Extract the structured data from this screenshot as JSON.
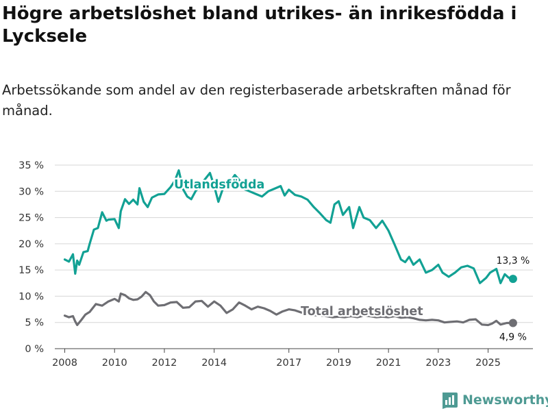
{
  "title": "Högre arbetslöshet bland utrikes- än inrikesfödda i Lycksele",
  "subtitle": "Arbetssökande som andel av den registerbaserade arbetskraften månad för månad.",
  "brand": {
    "name": "Newsworthy",
    "logo_icon": "bar-chart-icon"
  },
  "colors": {
    "utlandsfodda": "#12a194",
    "total": "#6e6e73",
    "grid": "#d6d6d6",
    "axis_text": "#333333",
    "brand": "#4e9a93"
  },
  "chart_data": {
    "type": "line",
    "title": "Högre arbetslöshet bland utrikes- än inrikesfödda i Lycksele",
    "xlabel": "",
    "ylabel": "",
    "xlim": [
      2007.6,
      2026.8
    ],
    "ylim": [
      0,
      35
    ],
    "grid": true,
    "yticks": [
      0,
      5,
      10,
      15,
      20,
      25,
      30,
      35
    ],
    "ytick_labels": [
      "0 %",
      "5 %",
      "10 %",
      "15 %",
      "20 %",
      "25 %",
      "30 %",
      "35 %"
    ],
    "xticks": [
      2008,
      2010,
      2012,
      2014,
      2017,
      2019,
      2021,
      2023,
      2025
    ],
    "xtick_labels": [
      "2008",
      "2010",
      "2012",
      "2014",
      "2017",
      "2019",
      "2021",
      "2023",
      "2025"
    ],
    "series": [
      {
        "name": "Utlandsfödda",
        "end_label": "13,3 %",
        "x": [
          2008.0,
          2008.17,
          2008.33,
          2008.42,
          2008.5,
          2008.58,
          2008.75,
          2008.92,
          2009.0,
          2009.17,
          2009.33,
          2009.5,
          2009.67,
          2009.75,
          2010.0,
          2010.17,
          2010.25,
          2010.42,
          2010.58,
          2010.75,
          2010.92,
          2011.0,
          2011.17,
          2011.33,
          2011.5,
          2011.75,
          2012.0,
          2012.25,
          2012.42,
          2012.58,
          2012.75,
          2012.92,
          2013.08,
          2013.25,
          2013.42,
          2013.58,
          2013.83,
          2014.0,
          2014.17,
          2014.42,
          2014.67,
          2014.83,
          2015.0,
          2015.17,
          2015.42,
          2015.67,
          2015.92,
          2016.17,
          2016.42,
          2016.67,
          2016.83,
          2017.0,
          2017.25,
          2017.5,
          2017.75,
          2018.0,
          2018.25,
          2018.5,
          2018.67,
          2018.83,
          2019.0,
          2019.17,
          2019.42,
          2019.58,
          2019.83,
          2020.0,
          2020.25,
          2020.5,
          2020.75,
          2021.0,
          2021.25,
          2021.5,
          2021.67,
          2021.83,
          2022.0,
          2022.25,
          2022.5,
          2022.75,
          2023.0,
          2023.17,
          2023.42,
          2023.67,
          2023.92,
          2024.17,
          2024.42,
          2024.67,
          2024.92,
          2025.08,
          2025.33,
          2025.5,
          2025.67,
          2025.83,
          2026.0
        ],
        "y": [
          17.0,
          16.6,
          18.0,
          14.3,
          16.8,
          16.0,
          18.4,
          18.6,
          20.0,
          22.7,
          23.0,
          26.0,
          24.4,
          24.6,
          24.7,
          23.0,
          26.2,
          28.5,
          27.6,
          28.4,
          27.5,
          30.6,
          28.0,
          27.0,
          28.8,
          29.4,
          29.5,
          30.8,
          32.0,
          34.0,
          30.4,
          29.0,
          28.5,
          30.0,
          31.0,
          32.0,
          33.5,
          31.0,
          28.0,
          31.5,
          32.0,
          33.1,
          32.2,
          30.5,
          30.0,
          29.5,
          29.0,
          30.0,
          30.5,
          31.0,
          29.2,
          30.3,
          29.3,
          29.0,
          28.4,
          27.0,
          25.8,
          24.5,
          24.0,
          27.5,
          28.1,
          25.5,
          27.0,
          23.0,
          27.0,
          25.0,
          24.5,
          23.0,
          24.4,
          22.5,
          19.8,
          17.0,
          16.5,
          17.5,
          16.0,
          17.0,
          14.5,
          15.0,
          16.0,
          14.5,
          13.7,
          14.5,
          15.5,
          15.8,
          15.3,
          12.5,
          13.5,
          14.5,
          15.2,
          12.5,
          14.2,
          13.5,
          13.3
        ]
      },
      {
        "name": "Total arbetslöshet",
        "end_label": "4,9 %",
        "x": [
          2008.0,
          2008.17,
          2008.33,
          2008.42,
          2008.5,
          2008.67,
          2008.83,
          2009.0,
          2009.25,
          2009.5,
          2009.75,
          2010.0,
          2010.17,
          2010.25,
          2010.42,
          2010.58,
          2010.75,
          2010.92,
          2011.08,
          2011.25,
          2011.42,
          2011.58,
          2011.75,
          2012.0,
          2012.25,
          2012.5,
          2012.75,
          2013.0,
          2013.25,
          2013.5,
          2013.75,
          2014.0,
          2014.25,
          2014.5,
          2014.75,
          2015.0,
          2015.25,
          2015.5,
          2015.75,
          2016.0,
          2016.25,
          2016.5,
          2016.75,
          2017.0,
          2017.25,
          2017.5,
          2017.75,
          2018.0,
          2018.25,
          2018.5,
          2018.75,
          2019.0,
          2019.25,
          2019.5,
          2019.75,
          2020.0,
          2020.25,
          2020.5,
          2020.75,
          2021.0,
          2021.25,
          2021.5,
          2021.75,
          2022.0,
          2022.25,
          2022.5,
          2022.75,
          2023.0,
          2023.25,
          2023.5,
          2023.75,
          2024.0,
          2024.25,
          2024.5,
          2024.75,
          2025.0,
          2025.17,
          2025.33,
          2025.5,
          2025.75,
          2026.0
        ],
        "y": [
          6.3,
          6.0,
          6.2,
          5.2,
          4.5,
          5.5,
          6.5,
          7.0,
          8.5,
          8.2,
          9.0,
          9.5,
          9.0,
          10.5,
          10.2,
          9.6,
          9.3,
          9.4,
          9.9,
          10.8,
          10.2,
          9.0,
          8.2,
          8.3,
          8.8,
          8.9,
          7.8,
          7.9,
          9.0,
          9.1,
          8.0,
          9.0,
          8.2,
          6.8,
          7.5,
          8.8,
          8.2,
          7.5,
          8.0,
          7.7,
          7.2,
          6.5,
          7.1,
          7.5,
          7.3,
          6.9,
          6.6,
          6.4,
          6.3,
          6.2,
          6.0,
          6.1,
          6.0,
          6.2,
          6.0,
          6.3,
          6.2,
          6.0,
          6.1,
          6.0,
          6.2,
          5.9,
          6.0,
          5.8,
          5.5,
          5.4,
          5.5,
          5.4,
          5.0,
          5.1,
          5.2,
          5.0,
          5.5,
          5.6,
          4.6,
          4.5,
          4.8,
          5.3,
          4.6,
          4.9,
          4.9
        ]
      }
    ]
  }
}
